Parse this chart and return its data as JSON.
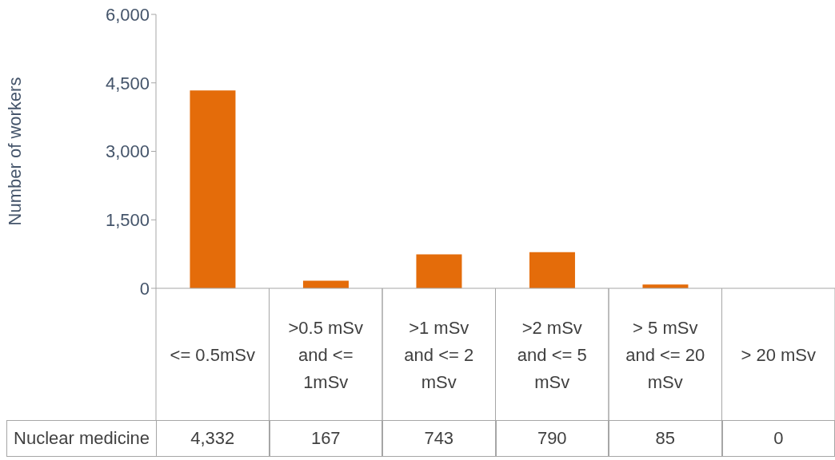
{
  "chart_data": {
    "type": "bar",
    "ylabel": "Number of workers",
    "categories": [
      "<= 0.5mSv",
      ">0.5 mSv and <= 1mSv",
      ">1 mSv and <= 2 mSv",
      ">2 mSv and <= 5 mSv",
      "> 5 mSv and <= 20 mSv",
      "> 20 mSv"
    ],
    "series": [
      {
        "name": "Nuclear medicine",
        "color": "#e46c0a",
        "values": [
          4332,
          167,
          743,
          790,
          85,
          0
        ],
        "value_labels": [
          "4,332",
          "167",
          "743",
          "790",
          "85",
          "0"
        ]
      }
    ],
    "ylim": [
      0,
      6000
    ],
    "yticks": [
      {
        "value": 0,
        "label": "0"
      },
      {
        "value": 1500,
        "label": "1,500"
      },
      {
        "value": 3000,
        "label": "3,000"
      },
      {
        "value": 4500,
        "label": "4,500"
      },
      {
        "value": 6000,
        "label": "6,000"
      }
    ]
  }
}
